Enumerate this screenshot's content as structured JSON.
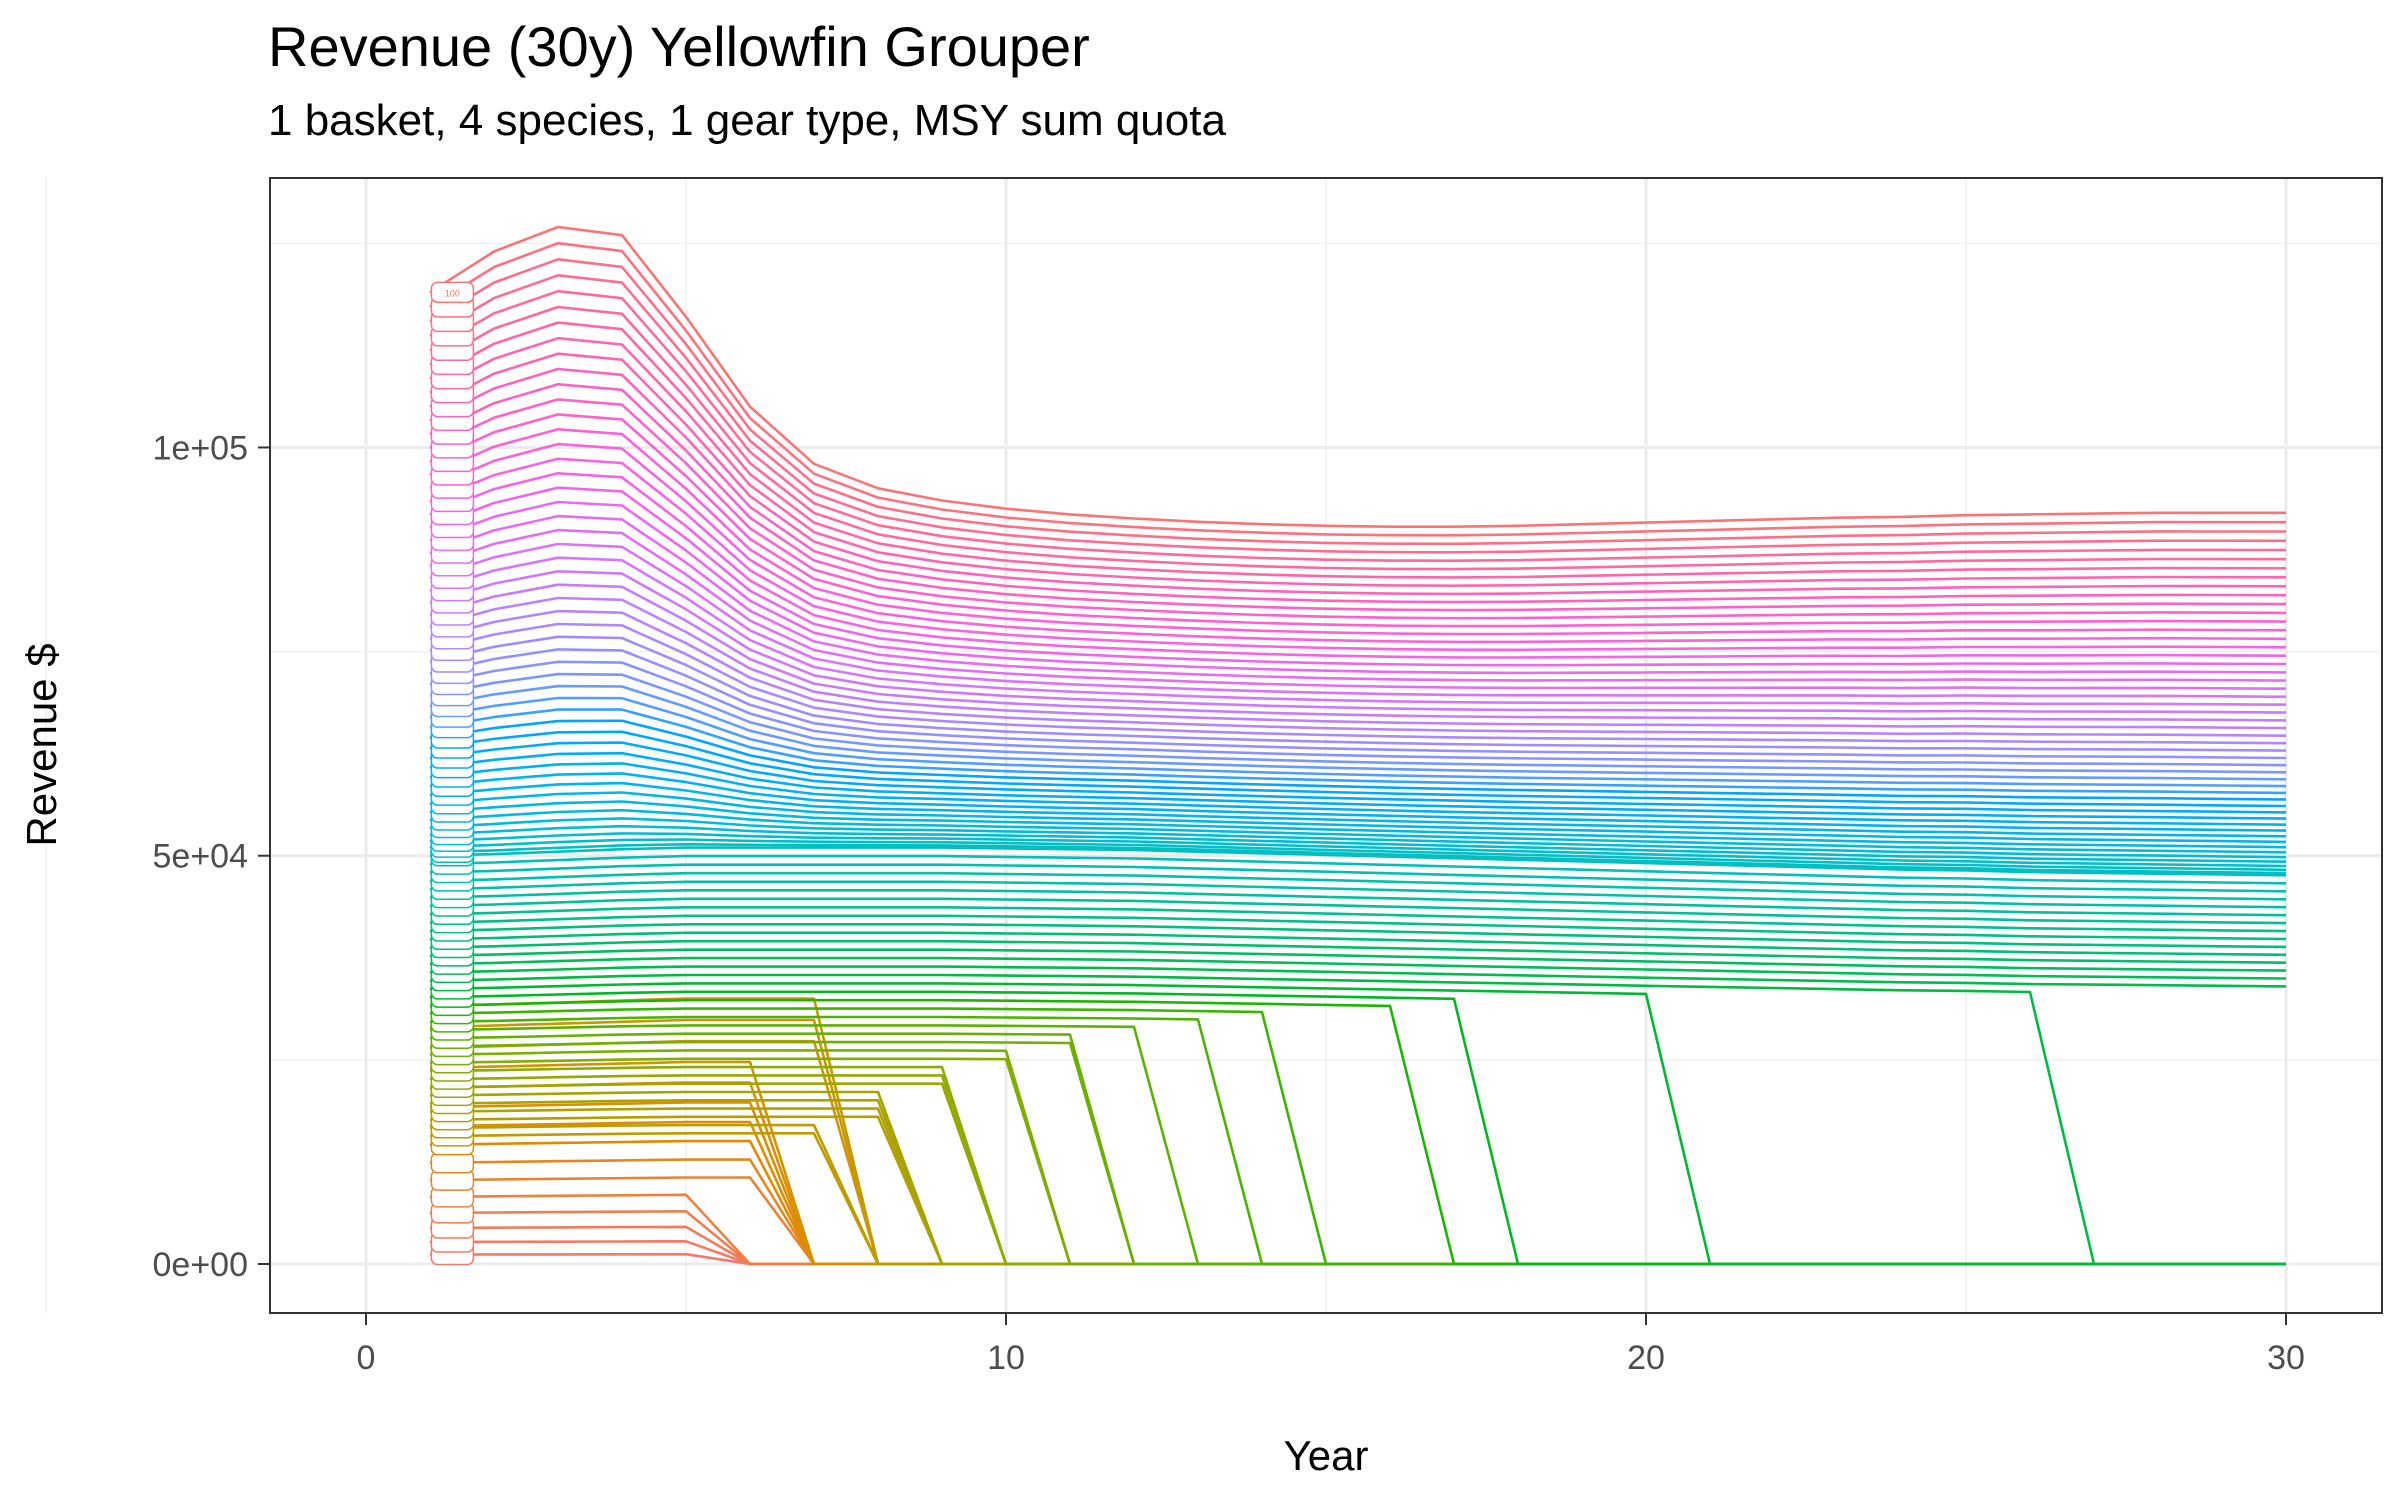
{
  "chart_data": {
    "type": "line",
    "title": "Revenue (30y) Yellowfin Grouper",
    "subtitle": "1 basket, 4 species, 1 gear type, MSY sum quota",
    "xlabel": "Year",
    "ylabel": "Revenue $",
    "xlim": [
      -1.5,
      31.5
    ],
    "ylim": [
      -6000,
      133000
    ],
    "x_ticks": [
      0,
      10,
      20,
      30
    ],
    "x_tick_labels": [
      "0",
      "10",
      "20",
      "30"
    ],
    "y_ticks": [
      0,
      50000,
      100000
    ],
    "y_tick_labels": [
      "0e+00",
      "5e+04",
      "1e+05"
    ],
    "grid": true,
    "legend": "none",
    "series_count": 100,
    "label_shown": "100",
    "label_x": 1.35,
    "hue_start": 15,
    "hue_end": 375,
    "hue_chroma_lightness": "ggplot2 default hue scale",
    "collapse_years": [
      6,
      6,
      6,
      6,
      6,
      7,
      7,
      7,
      7,
      7,
      7,
      7,
      8,
      8,
      8,
      8,
      8,
      9,
      9,
      9,
      9,
      10,
      10,
      10,
      11,
      11,
      12,
      12,
      13,
      14,
      15,
      17,
      18,
      21,
      27
    ],
    "series": [
      {
        "name": "1",
        "values": [
          1000,
          1000,
          1000,
          1000,
          1000,
          0,
          0,
          0,
          0,
          0,
          0,
          0,
          0,
          0,
          0,
          0,
          0,
          0,
          0,
          0,
          0,
          0,
          0,
          0,
          0,
          0,
          0,
          0,
          0,
          0
        ]
      },
      {
        "name": "2",
        "values": [
          2200,
          2200,
          2200,
          2200,
          2200,
          0,
          0,
          0,
          0,
          0,
          0,
          0,
          0,
          0,
          0,
          0,
          0,
          0,
          0,
          0,
          0,
          0,
          0,
          0,
          0,
          0,
          0,
          0,
          0,
          0
        ]
      },
      {
        "name": "50",
        "values": [
          50000,
          50200,
          50500,
          50800,
          51000,
          51000,
          51000,
          51000,
          51000,
          50900,
          50800,
          50700,
          50500,
          50300,
          50100,
          49900,
          49700,
          49500,
          49300,
          49100,
          48900,
          48700,
          48500,
          48300,
          48200,
          48000,
          47900,
          47800,
          47700,
          47600
        ]
      },
      {
        "name": "100",
        "values": [
          119000,
          124000,
          127000,
          126000,
          116000,
          105000,
          98000,
          95000,
          93500,
          92500,
          91800,
          91300,
          90900,
          90600,
          90400,
          90300,
          90300,
          90400,
          90600,
          90800,
          91000,
          91200,
          91400,
          91500,
          91700,
          91800,
          91900,
          92000,
          92000,
          92000
        ]
      }
    ]
  }
}
